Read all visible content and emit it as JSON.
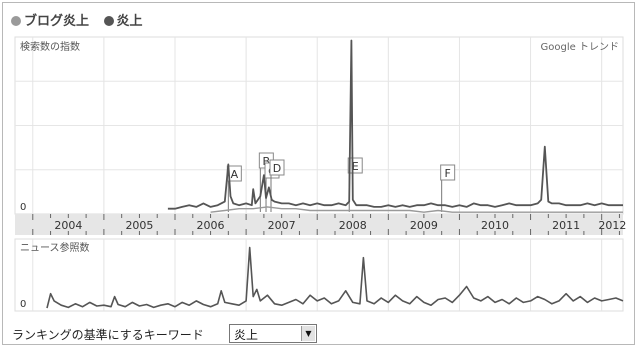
{
  "legend": [
    {
      "label": "ブログ炎上",
      "color": "#9a9a9a"
    },
    {
      "label": "炎上",
      "color": "#555555"
    }
  ],
  "chart_data": [
    {
      "type": "line",
      "ylabel": "検索数の指数",
      "source_label": "Google トレンド",
      "y_zero_label": "0",
      "x_ticks": [
        "2004",
        "2005",
        "2006",
        "2007",
        "2008",
        "2009",
        "2010",
        "2011",
        "2012"
      ],
      "xlim": [
        2003.75,
        2012.3
      ],
      "ylim": [
        0,
        100
      ],
      "grid": true,
      "series": [
        {
          "name": "炎上",
          "color": "#555555",
          "x": [
            2005.9,
            2006.0,
            2006.1,
            2006.2,
            2006.3,
            2006.4,
            2006.5,
            2006.6,
            2006.7,
            2006.75,
            2006.78,
            2006.82,
            2006.9,
            2007.0,
            2007.08,
            2007.1,
            2007.13,
            2007.2,
            2007.25,
            2007.28,
            2007.32,
            2007.36,
            2007.4,
            2007.5,
            2007.6,
            2007.7,
            2007.8,
            2007.9,
            2008.0,
            2008.1,
            2008.2,
            2008.3,
            2008.4,
            2008.45,
            2008.48,
            2008.5,
            2008.55,
            2008.6,
            2008.7,
            2008.8,
            2008.9,
            2009.0,
            2009.1,
            2009.2,
            2009.3,
            2009.4,
            2009.5,
            2009.6,
            2009.7,
            2009.8,
            2009.9,
            2010.0,
            2010.1,
            2010.2,
            2010.3,
            2010.4,
            2010.5,
            2010.6,
            2010.7,
            2010.8,
            2010.9,
            2011.0,
            2011.1,
            2011.15,
            2011.2,
            2011.25,
            2011.3,
            2011.4,
            2011.5,
            2011.6,
            2011.7,
            2011.8,
            2011.9,
            2012.0,
            2012.1,
            2012.2,
            2012.3
          ],
          "values": [
            3,
            3,
            4,
            5,
            4,
            6,
            4,
            5,
            7,
            28,
            10,
            6,
            5,
            6,
            5,
            14,
            6,
            10,
            22,
            9,
            15,
            8,
            7,
            6,
            6,
            5,
            6,
            5,
            6,
            5,
            5,
            6,
            5,
            7,
            98,
            8,
            5,
            5,
            5,
            4,
            4,
            5,
            4,
            5,
            4,
            5,
            5,
            6,
            5,
            5,
            4,
            5,
            4,
            6,
            5,
            5,
            4,
            5,
            6,
            5,
            5,
            5,
            6,
            8,
            38,
            7,
            6,
            6,
            5,
            5,
            5,
            6,
            5,
            6,
            5,
            5,
            5
          ]
        },
        {
          "name": "ブログ炎上",
          "color": "#9a9a9a",
          "x": [
            2006.5,
            2006.7,
            2006.9,
            2007.1,
            2007.3,
            2007.5,
            2007.7,
            2007.9,
            2008.1,
            2008.3,
            2008.5,
            2008.7,
            2008.9,
            2009.1,
            2009.3,
            2009.5,
            2009.7,
            2009.9,
            2010.1,
            2010.3,
            2010.5,
            2010.7,
            2010.9,
            2011.1,
            2011.3,
            2011.5,
            2011.7,
            2011.9,
            2012.1,
            2012.3
          ],
          "values": [
            1,
            2,
            3,
            3,
            4,
            3,
            3,
            2,
            2,
            2,
            2,
            2,
            2,
            2,
            2,
            1,
            2,
            1,
            1,
            1,
            1,
            1,
            1,
            1,
            1,
            1,
            1,
            1,
            1,
            1
          ]
        }
      ],
      "annotations": [
        {
          "label": "A",
          "x": 2006.75
        },
        {
          "label": "B",
          "x": 2007.2
        },
        {
          "label": "C",
          "x": 2007.28
        },
        {
          "label": "D",
          "x": 2007.35
        },
        {
          "label": "E",
          "x": 2008.45
        },
        {
          "label": "F",
          "x": 2009.75
        }
      ]
    },
    {
      "type": "line",
      "ylabel": "ニュース参照数",
      "y_zero_label": "0",
      "xlim": [
        2003.75,
        2012.3
      ],
      "ylim": [
        0,
        100
      ],
      "grid": true,
      "series": [
        {
          "name": "",
          "color": "#555555",
          "x": [
            2004.2,
            2004.25,
            2004.3,
            2004.4,
            2004.5,
            2004.6,
            2004.7,
            2004.8,
            2004.9,
            2005.0,
            2005.1,
            2005.15,
            2005.2,
            2005.3,
            2005.4,
            2005.5,
            2005.6,
            2005.7,
            2005.8,
            2005.9,
            2006.0,
            2006.1,
            2006.2,
            2006.3,
            2006.4,
            2006.5,
            2006.6,
            2006.65,
            2006.7,
            2006.8,
            2006.9,
            2007.0,
            2007.05,
            2007.1,
            2007.15,
            2007.2,
            2007.3,
            2007.4,
            2007.5,
            2007.6,
            2007.7,
            2007.8,
            2007.9,
            2008.0,
            2008.1,
            2008.2,
            2008.3,
            2008.4,
            2008.5,
            2008.6,
            2008.65,
            2008.7,
            2008.8,
            2008.9,
            2009.0,
            2009.1,
            2009.2,
            2009.3,
            2009.4,
            2009.5,
            2009.6,
            2009.7,
            2009.8,
            2009.9,
            2010.0,
            2010.1,
            2010.2,
            2010.3,
            2010.4,
            2010.5,
            2010.6,
            2010.7,
            2010.8,
            2010.9,
            2011.0,
            2011.1,
            2011.2,
            2011.3,
            2011.4,
            2011.5,
            2011.6,
            2011.7,
            2011.8,
            2011.9,
            2012.0,
            2012.1,
            2012.2,
            2012.3
          ],
          "values": [
            4,
            24,
            14,
            8,
            5,
            10,
            6,
            12,
            7,
            8,
            6,
            20,
            9,
            6,
            12,
            7,
            9,
            5,
            8,
            10,
            6,
            12,
            8,
            14,
            9,
            6,
            10,
            28,
            12,
            10,
            8,
            14,
            88,
            20,
            30,
            14,
            22,
            10,
            8,
            12,
            16,
            10,
            22,
            14,
            18,
            10,
            14,
            28,
            12,
            10,
            74,
            14,
            10,
            18,
            12,
            22,
            14,
            10,
            20,
            12,
            8,
            16,
            18,
            12,
            22,
            34,
            18,
            14,
            20,
            12,
            16,
            10,
            18,
            12,
            14,
            20,
            16,
            10,
            14,
            24,
            14,
            20,
            12,
            18,
            14,
            16,
            18,
            14
          ]
        }
      ]
    }
  ],
  "footer": {
    "label": "ランキングの基準にするキーワード",
    "select_value": "炎上"
  }
}
